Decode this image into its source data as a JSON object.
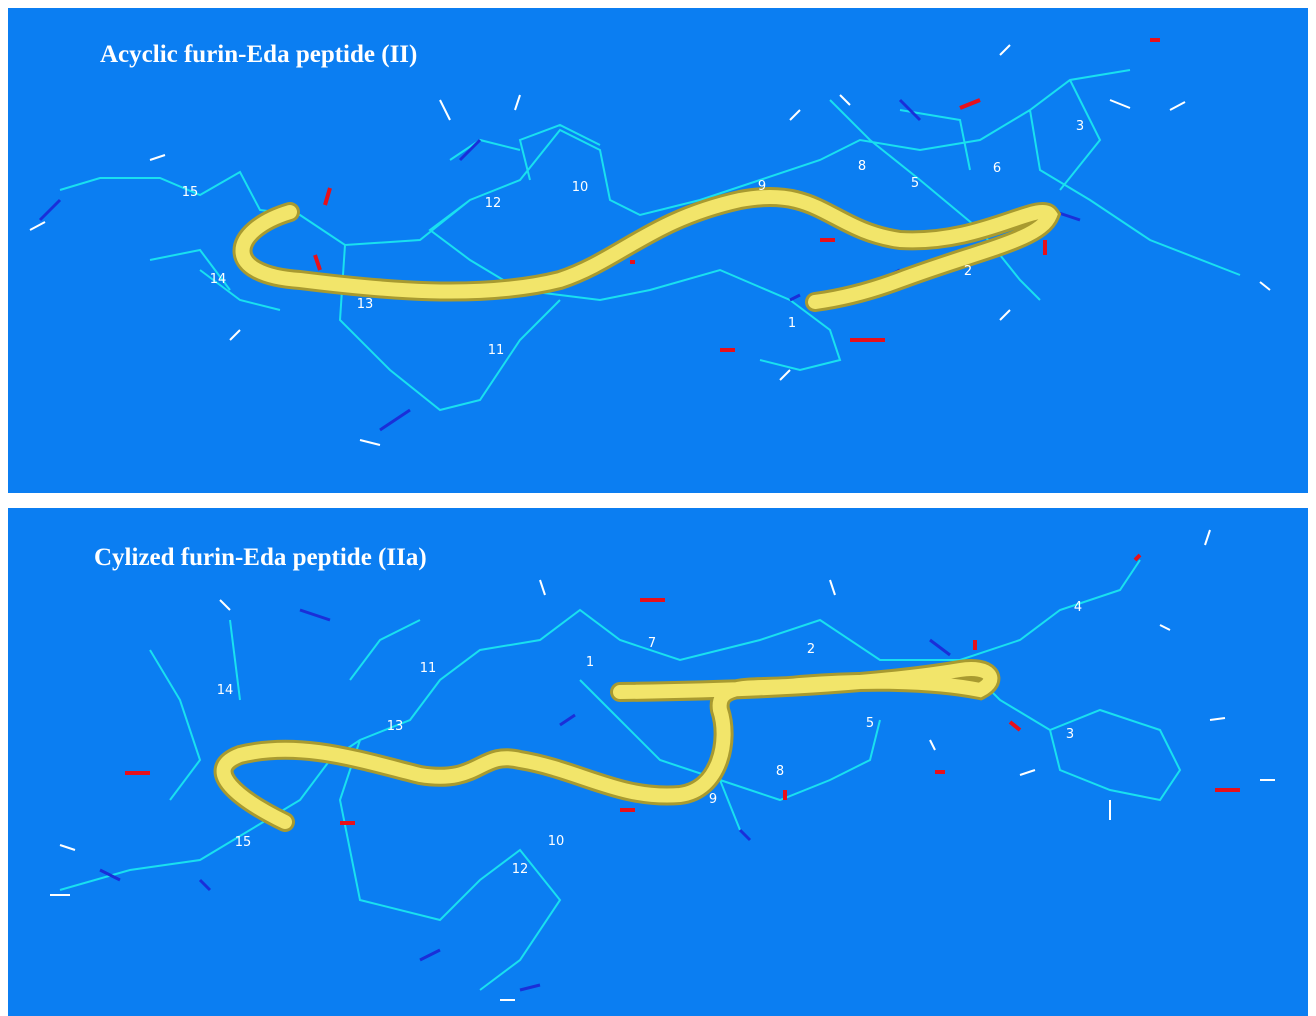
{
  "panels": [
    {
      "title": "Acyclic furin-Eda peptide (II)",
      "residue_labels": [
        "15",
        "14",
        "13",
        "12",
        "11",
        "10",
        "9",
        "8",
        "5",
        "6",
        "3",
        "2",
        "1"
      ]
    },
    {
      "title": "Cylized furin-Eda peptide (IIa)",
      "residue_labels": [
        "14",
        "11",
        "13",
        "1",
        "7",
        "2",
        "4",
        "5",
        "3",
        "8",
        "9",
        "10",
        "12",
        "15"
      ]
    }
  ]
}
